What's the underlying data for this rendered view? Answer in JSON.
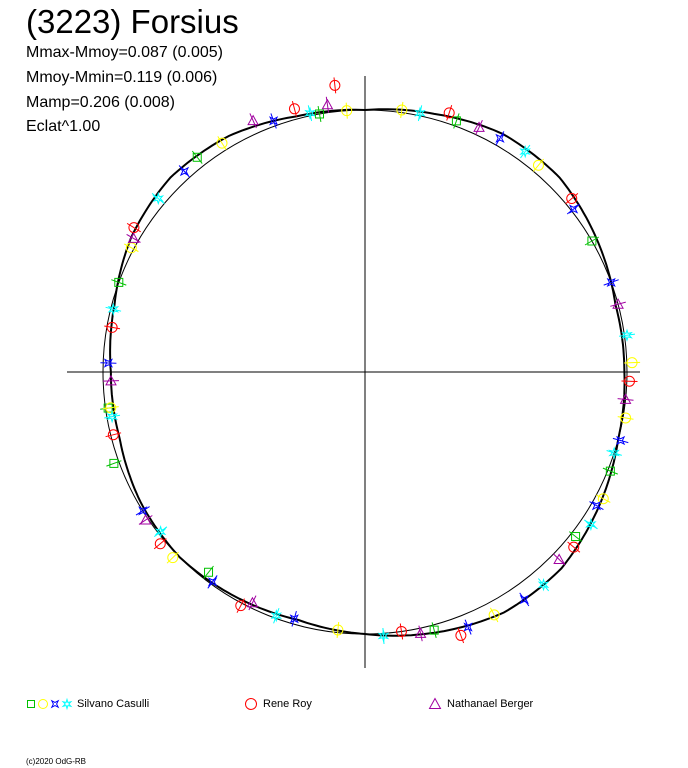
{
  "chart_data": {
    "type": "scatter",
    "title": "(3223) Forsius",
    "stats": [
      "Mmax-Mmoy=0.087 (0.005)",
      "Mmoy-Mmin=0.119 (0.006)",
      "Mamp=0.206 (0.008)",
      "Eclat^1.00"
    ],
    "grid": false,
    "legend_position": "bottom",
    "legend": [
      {
        "name": "Silvano Casulli",
        "markers": [
          "square",
          "circle",
          "star4",
          "star6"
        ],
        "colors": [
          "#00c000",
          "#ffff00",
          "#0000ff",
          "#00ffff"
        ]
      },
      {
        "name": "Rene Roy",
        "markers": [
          "circle"
        ],
        "colors": [
          "#ff0000"
        ]
      },
      {
        "name": "Nathanael Berger",
        "markers": [
          "triangle"
        ],
        "colors": [
          "#a000a0"
        ]
      }
    ],
    "reference_circle": {
      "radius": 1.0
    },
    "fit_curve": [
      [
        0,
        1.0
      ],
      [
        15,
        1.02
      ],
      [
        30,
        1.05
      ],
      [
        45,
        1.05
      ],
      [
        60,
        1.02
      ],
      [
        75,
        0.99
      ],
      [
        90,
        0.99
      ],
      [
        105,
        1.0
      ],
      [
        120,
        1.03
      ],
      [
        135,
        1.06
      ],
      [
        150,
        1.06
      ],
      [
        165,
        1.03
      ],
      [
        180,
        1.0
      ],
      [
        195,
        0.98
      ],
      [
        210,
        0.99
      ],
      [
        225,
        1.0
      ],
      [
        240,
        0.99
      ],
      [
        255,
        0.97
      ],
      [
        270,
        0.97
      ],
      [
        285,
        0.99
      ],
      [
        300,
        1.03
      ],
      [
        315,
        1.05
      ],
      [
        330,
        1.04
      ],
      [
        345,
        1.01
      ]
    ],
    "series": [
      {
        "name": "Silvano Casulli",
        "marker": "square",
        "color": "#00c000",
        "points": [
          [
            20,
            1.02
          ],
          [
            60,
            1.0
          ],
          [
            112,
            1.01
          ],
          [
            128,
            1.02
          ],
          [
            165,
            1.02
          ],
          [
            218,
            0.97
          ],
          [
            250,
            1.02
          ],
          [
            262,
            0.99
          ],
          [
            290,
            1.0
          ],
          [
            322,
            1.04
          ],
          [
            350,
            1.0
          ]
        ]
      },
      {
        "name": "Silvano Casulli",
        "marker": "circle",
        "color": "#ffff00",
        "points": [
          [
            8,
            1.01
          ],
          [
            40,
            1.03
          ],
          [
            88,
            1.02
          ],
          [
            100,
            1.01
          ],
          [
            118,
            1.03
          ],
          [
            152,
            1.05
          ],
          [
            186,
            0.99
          ],
          [
            226,
            1.02
          ],
          [
            262,
            0.98
          ],
          [
            298,
            1.01
          ],
          [
            328,
            1.03
          ],
          [
            356,
            1.0
          ]
        ]
      },
      {
        "name": "Silvano Casulli",
        "marker": "star4",
        "color": "#0000ff",
        "points": [
          [
            30,
            1.03
          ],
          [
            52,
            1.01
          ],
          [
            70,
            1.0
          ],
          [
            105,
            1.01
          ],
          [
            120,
            1.02
          ],
          [
            145,
            1.06
          ],
          [
            158,
            1.05
          ],
          [
            196,
            0.98
          ],
          [
            216,
            0.99
          ],
          [
            238,
            1.0
          ],
          [
            272,
            0.98
          ],
          [
            318,
            1.03
          ],
          [
            340,
            1.02
          ]
        ]
      },
      {
        "name": "Silvano Casulli",
        "marker": "star6",
        "color": "#00ffff",
        "points": [
          [
            12,
            1.01
          ],
          [
            36,
            1.04
          ],
          [
            82,
            1.01
          ],
          [
            108,
            1.0
          ],
          [
            124,
            1.04
          ],
          [
            140,
            1.06
          ],
          [
            176,
            1.01
          ],
          [
            200,
            0.99
          ],
          [
            232,
            0.99
          ],
          [
            260,
            0.98
          ],
          [
            284,
            0.99
          ],
          [
            310,
            1.03
          ],
          [
            348,
            1.01
          ]
        ]
      },
      {
        "name": "Rene Roy",
        "marker": "circle",
        "color": "#ff0000",
        "points": [
          [
            18,
            1.04
          ],
          [
            50,
            1.03
          ],
          [
            92,
            1.01
          ],
          [
            130,
            1.04
          ],
          [
            160,
            1.07
          ],
          [
            172,
            1.0
          ],
          [
            208,
            1.01
          ],
          [
            230,
            1.02
          ],
          [
            256,
            0.99
          ],
          [
            280,
            0.98
          ],
          [
            302,
            1.04
          ],
          [
            345,
            1.04
          ],
          [
            354,
            1.1
          ]
        ]
      },
      {
        "name": "Nathanael Berger",
        "marker": "triangle",
        "color": "#a000a0",
        "points": [
          [
            25,
            1.03
          ],
          [
            75,
            1.0
          ],
          [
            96,
            1.0
          ],
          [
            134,
            1.03
          ],
          [
            168,
            1.02
          ],
          [
            206,
            0.98
          ],
          [
            236,
            1.01
          ],
          [
            268,
            0.97
          ],
          [
            300,
            1.02
          ],
          [
            336,
            1.05
          ],
          [
            352,
            1.03
          ]
        ]
      }
    ]
  },
  "footer": {
    "copyright": "(c)2020 OdG-RB"
  }
}
